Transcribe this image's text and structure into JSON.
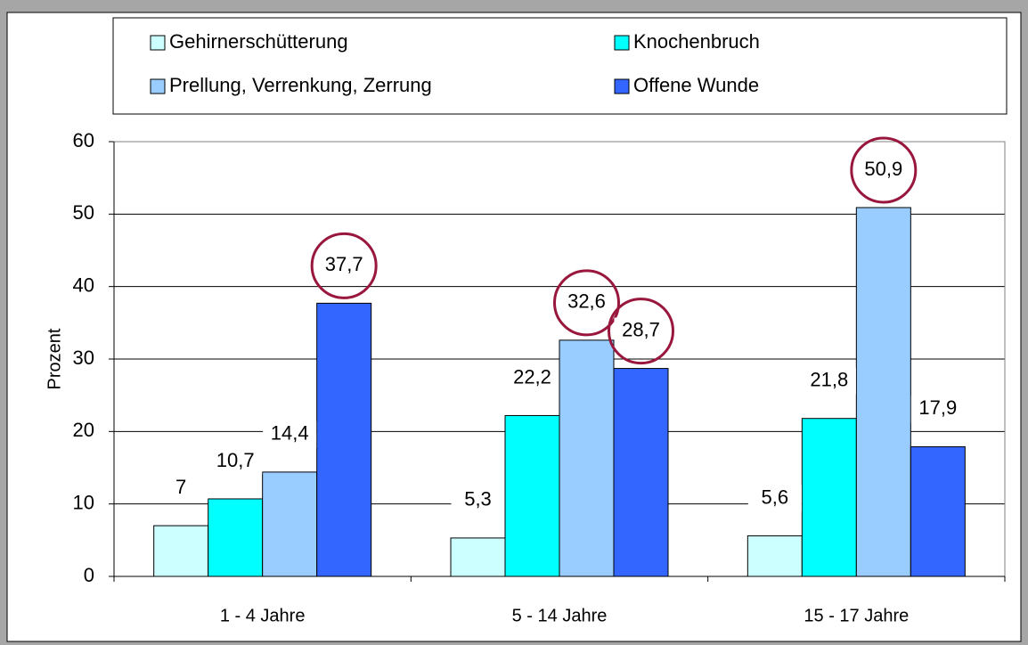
{
  "chart_data": {
    "type": "bar",
    "categories": [
      "1 - 4 Jahre",
      "5 - 14 Jahre",
      "15 - 17 Jahre"
    ],
    "series": [
      {
        "name": "Gehirnerschütterung",
        "color": "#ccffff",
        "values": [
          7,
          5.3,
          5.6
        ],
        "value_labels": [
          "7",
          "5,3",
          "5,6"
        ]
      },
      {
        "name": "Knochenbruch",
        "color": "#00ffff",
        "values": [
          10.7,
          22.2,
          21.8
        ],
        "value_labels": [
          "10,7",
          "22,2",
          "21,8"
        ]
      },
      {
        "name": "Prellung, Verrenkung, Zerrung",
        "color": "#99ccff",
        "values": [
          14.4,
          32.6,
          50.9
        ],
        "value_labels": [
          "14,4",
          "32,6",
          "50,9"
        ]
      },
      {
        "name": "Offene Wunde",
        "color": "#3366ff",
        "values": [
          37.7,
          28.7,
          17.9
        ],
        "value_labels": [
          "37,7",
          "28,7",
          "17,9"
        ]
      }
    ],
    "ylabel": "Prozent",
    "ylim": [
      0,
      60
    ],
    "yticks": [
      0,
      10,
      20,
      30,
      40,
      50,
      60
    ],
    "grid": true,
    "legend": "top"
  }
}
